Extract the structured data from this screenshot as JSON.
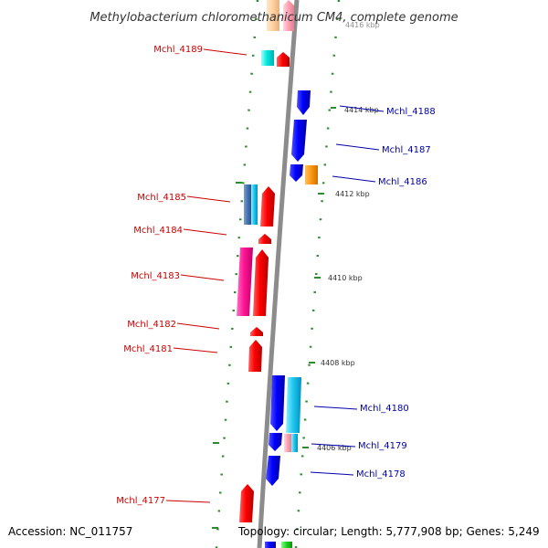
{
  "title": "Methylobacterium chloromethanicum CM4, complete genome",
  "footer": {
    "accession": "Accession: NC_011757",
    "summary": "Topology: circular; Length: 5,777,908 bp; Genes: 5,249"
  },
  "scale_labels": [
    "4416 kbp",
    "4414 kbp",
    "4412 kbp",
    "4410 kbp",
    "4408 kbp",
    "4406 kbp"
  ],
  "gene_labels": {
    "reverse": [
      "Mchl_4189",
      "Mchl_4185",
      "Mchl_4184",
      "Mchl_4183",
      "Mchl_4182",
      "Mchl_4181",
      "Mchl_4177"
    ],
    "forward": [
      "Mchl_4188",
      "Mchl_4187",
      "Mchl_4186",
      "Mchl_4180",
      "Mchl_4179",
      "Mchl_4178"
    ]
  },
  "colors": {
    "reverse_label": "#cc0000",
    "forward_label": "#0000aa",
    "backbone": "#808080",
    "tick": "#2e8b2e"
  }
}
